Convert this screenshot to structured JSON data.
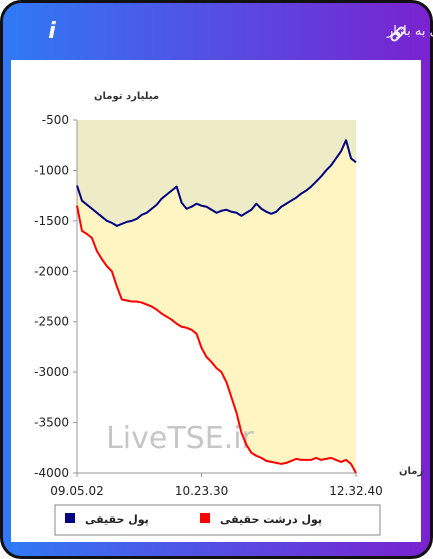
{
  "chart_data": {
    "type": "line",
    "title": "برآیند ورود و خروج پول حقیقی و پول درشت حقیقی به بازار",
    "y_label": "میلیارد تومان",
    "x_label": "زمان",
    "watermark": "LiveTSE.ir",
    "categories": [
      "09.05.02",
      null,
      null,
      null,
      null,
      null,
      null,
      null,
      null,
      null,
      null,
      null,
      null,
      null,
      null,
      null,
      null,
      null,
      null,
      null,
      null,
      null,
      null,
      null,
      null,
      "10.23.30",
      null,
      null,
      null,
      null,
      null,
      null,
      null,
      null,
      null,
      null,
      null,
      null,
      null,
      null,
      null,
      null,
      null,
      null,
      null,
      null,
      null,
      null,
      null,
      null,
      null,
      null,
      null,
      null,
      null,
      null,
      "12.32.40"
    ],
    "series": [
      {
        "name": "پول حقیقی",
        "color": "#000080",
        "values": [
          -1150,
          -1300,
          -1340,
          -1380,
          -1420,
          -1460,
          -1500,
          -1520,
          -1550,
          -1530,
          -1510,
          -1500,
          -1480,
          -1440,
          -1420,
          -1380,
          -1340,
          -1280,
          -1240,
          -1200,
          -1160,
          -1320,
          -1380,
          -1360,
          -1330,
          -1350,
          -1360,
          -1390,
          -1420,
          -1400,
          -1390,
          -1410,
          -1420,
          -1450,
          -1420,
          -1390,
          -1330,
          -1380,
          -1410,
          -1430,
          -1410,
          -1360,
          -1330,
          -1300,
          -1270,
          -1230,
          -1200,
          -1160,
          -1110,
          -1060,
          -1000,
          -950,
          -880,
          -810,
          -700,
          -880,
          -920
        ]
      },
      {
        "name": "پول درشت حقیقی",
        "color": "#ff0000",
        "values": [
          -1350,
          -1600,
          -1630,
          -1670,
          -1800,
          -1880,
          -1950,
          -2000,
          -2150,
          -2280,
          -2290,
          -2300,
          -2300,
          -2310,
          -2330,
          -2350,
          -2380,
          -2420,
          -2450,
          -2480,
          -2520,
          -2550,
          -2560,
          -2580,
          -2620,
          -2760,
          -2850,
          -2900,
          -2960,
          -3000,
          -3100,
          -3250,
          -3400,
          -3600,
          -3720,
          -3800,
          -3830,
          -3850,
          -3880,
          -3890,
          -3900,
          -3910,
          -3900,
          -3880,
          -3860,
          -3870,
          -3870,
          -3870,
          -3850,
          -3870,
          -3860,
          -3850,
          -3870,
          -3890,
          -3870,
          -3910,
          -4000
        ]
      }
    ],
    "ylim": [
      -4000,
      -500
    ],
    "yticks": [
      -500,
      -1000,
      -1500,
      -2000,
      -2500,
      -3000,
      -3500,
      -4000
    ],
    "grid": false
  }
}
